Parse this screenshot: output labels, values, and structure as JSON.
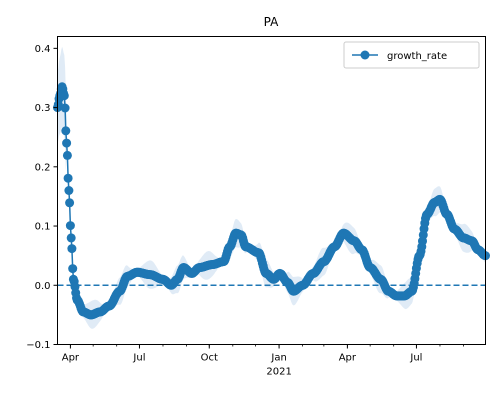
{
  "chart_data": {
    "type": "line",
    "title": "PA",
    "xlabel": "",
    "ylabel": "",
    "xlim": [
      "2020-03-15",
      "2021-09-30"
    ],
    "ylim": [
      -0.1,
      0.42
    ],
    "x_tick_labels": [
      {
        "date": "2020-04-01",
        "label": "Apr"
      },
      {
        "date": "2020-07-01",
        "label": "Jul"
      },
      {
        "date": "2020-10-01",
        "label": "Oct"
      },
      {
        "date": "2021-01-01",
        "label": "Jan"
      },
      {
        "date": "2021-04-01",
        "label": "Apr"
      },
      {
        "date": "2021-07-01",
        "label": "Jul"
      }
    ],
    "x_year_label": {
      "date": "2021-01-01",
      "label": "2021"
    },
    "y_ticks": [
      -0.1,
      0.0,
      0.1,
      0.2,
      0.3,
      0.4
    ],
    "y_tick_labels": [
      "−0.1",
      "0.0",
      "0.1",
      "0.2",
      "0.3",
      "0.4"
    ],
    "reference_line": {
      "y": 0.0,
      "style": "dashed",
      "color": "#1f77b4"
    },
    "grid": false,
    "legend": {
      "position": "top-right",
      "entries": [
        "growth_rate"
      ]
    },
    "series": [
      {
        "name": "growth_rate",
        "color": "#1f77b4",
        "band_color": "#dbe8f4",
        "band_halfwidth": 0.015,
        "marker": "circle",
        "keypoints": [
          [
            "2020-03-15",
            0.3
          ],
          [
            "2020-03-18",
            0.32
          ],
          [
            "2020-03-21",
            0.335
          ],
          [
            "2020-03-24",
            0.32
          ],
          [
            "2020-03-27",
            0.24
          ],
          [
            "2020-03-30",
            0.16
          ],
          [
            "2020-04-02",
            0.08
          ],
          [
            "2020-04-05",
            0.01
          ],
          [
            "2020-04-10",
            -0.025
          ],
          [
            "2020-04-18",
            -0.045
          ],
          [
            "2020-04-28",
            -0.05
          ],
          [
            "2020-05-10",
            -0.045
          ],
          [
            "2020-05-22",
            -0.035
          ],
          [
            "2020-06-05",
            -0.01
          ],
          [
            "2020-06-15",
            0.015
          ],
          [
            "2020-06-28",
            0.022
          ],
          [
            "2020-07-15",
            0.018
          ],
          [
            "2020-08-01",
            0.01
          ],
          [
            "2020-08-12",
            0.0
          ],
          [
            "2020-08-20",
            0.01
          ],
          [
            "2020-08-28",
            0.03
          ],
          [
            "2020-09-08",
            0.02
          ],
          [
            "2020-09-18",
            0.03
          ],
          [
            "2020-10-05",
            0.035
          ],
          [
            "2020-10-20",
            0.04
          ],
          [
            "2020-10-28",
            0.065
          ],
          [
            "2020-11-05",
            0.088
          ],
          [
            "2020-11-12",
            0.085
          ],
          [
            "2020-11-18",
            0.065
          ],
          [
            "2020-12-05",
            0.055
          ],
          [
            "2020-12-15",
            0.02
          ],
          [
            "2020-12-25",
            0.01
          ],
          [
            "2021-01-02",
            0.02
          ],
          [
            "2021-01-12",
            0.005
          ],
          [
            "2021-01-20",
            -0.01
          ],
          [
            "2021-02-01",
            0.0
          ],
          [
            "2021-02-15",
            0.02
          ],
          [
            "2021-03-01",
            0.04
          ],
          [
            "2021-03-15",
            0.065
          ],
          [
            "2021-03-27",
            0.088
          ],
          [
            "2021-04-10",
            0.075
          ],
          [
            "2021-04-20",
            0.06
          ],
          [
            "2021-05-01",
            0.03
          ],
          [
            "2021-05-15",
            0.01
          ],
          [
            "2021-05-25",
            -0.01
          ],
          [
            "2021-06-05",
            -0.018
          ],
          [
            "2021-06-15",
            -0.018
          ],
          [
            "2021-06-25",
            -0.01
          ],
          [
            "2021-07-05",
            0.05
          ],
          [
            "2021-07-15",
            0.12
          ],
          [
            "2021-07-25",
            0.14
          ],
          [
            "2021-08-01",
            0.145
          ],
          [
            "2021-08-10",
            0.12
          ],
          [
            "2021-08-20",
            0.095
          ],
          [
            "2021-09-01",
            0.08
          ],
          [
            "2021-09-12",
            0.075
          ],
          [
            "2021-09-20",
            0.06
          ],
          [
            "2021-09-30",
            0.05
          ]
        ]
      }
    ]
  }
}
